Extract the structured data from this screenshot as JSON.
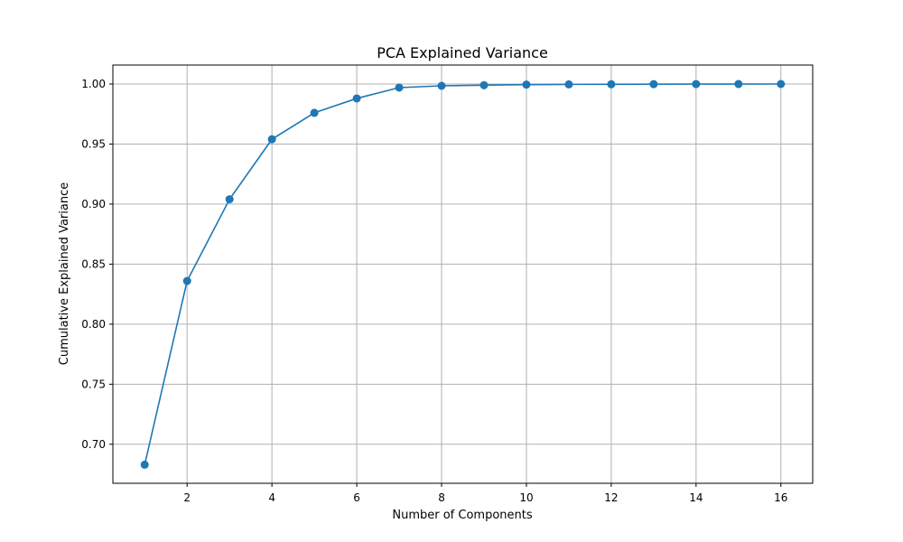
{
  "chart_data": {
    "type": "line",
    "title": "PCA Explained Variance",
    "xlabel": "Number of Components",
    "ylabel": "Cumulative Explained Variance",
    "x": [
      1,
      2,
      3,
      4,
      5,
      6,
      7,
      8,
      9,
      10,
      11,
      12,
      13,
      14,
      15,
      16
    ],
    "series": [
      {
        "values": [
          0.683,
          0.836,
          0.904,
          0.954,
          0.976,
          0.988,
          0.997,
          0.9985,
          0.999,
          0.9995,
          0.9997,
          0.9998,
          0.9999,
          0.99995,
          0.99998,
          1.0
        ]
      }
    ],
    "xlim": [
      0.25,
      16.75
    ],
    "ylim": [
      0.6675,
      1.0158
    ],
    "xticks": [
      "2",
      "4",
      "6",
      "8",
      "10",
      "12",
      "14",
      "16"
    ],
    "yticks": [
      "0.70",
      "0.75",
      "0.80",
      "0.85",
      "0.90",
      "0.95",
      "1.00"
    ],
    "grid": true,
    "marker": "circle",
    "colors": {
      "line": "#1f77b4"
    }
  }
}
